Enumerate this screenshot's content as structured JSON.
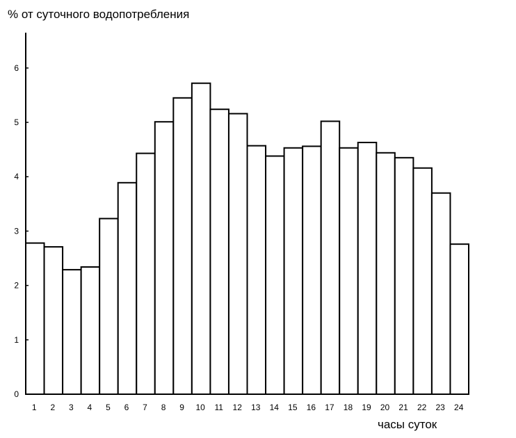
{
  "chart_data": {
    "type": "bar",
    "title": "",
    "ylabel": "% от суточного водопотребления",
    "xlabel": "часы суток",
    "categories": [
      "1",
      "2",
      "3",
      "4",
      "5",
      "6",
      "7",
      "8",
      "9",
      "10",
      "11",
      "12",
      "13",
      "14",
      "15",
      "16",
      "17",
      "18",
      "19",
      "20",
      "21",
      "22",
      "23",
      "24"
    ],
    "values": [
      2.78,
      2.71,
      2.29,
      2.34,
      3.23,
      3.89,
      4.43,
      5.01,
      5.45,
      5.72,
      5.24,
      5.16,
      4.57,
      4.38,
      4.53,
      4.56,
      5.02,
      4.53,
      4.63,
      4.44,
      4.35,
      4.16,
      3.7,
      2.76
    ],
    "ylim": [
      0,
      6.7
    ],
    "yticks": [
      "0",
      "1",
      "2",
      "3",
      "4",
      "5",
      "6"
    ],
    "grid": false,
    "colors": {
      "bar_fill": "#ffffff",
      "bar_stroke": "#000000",
      "axis": "#000000"
    }
  }
}
